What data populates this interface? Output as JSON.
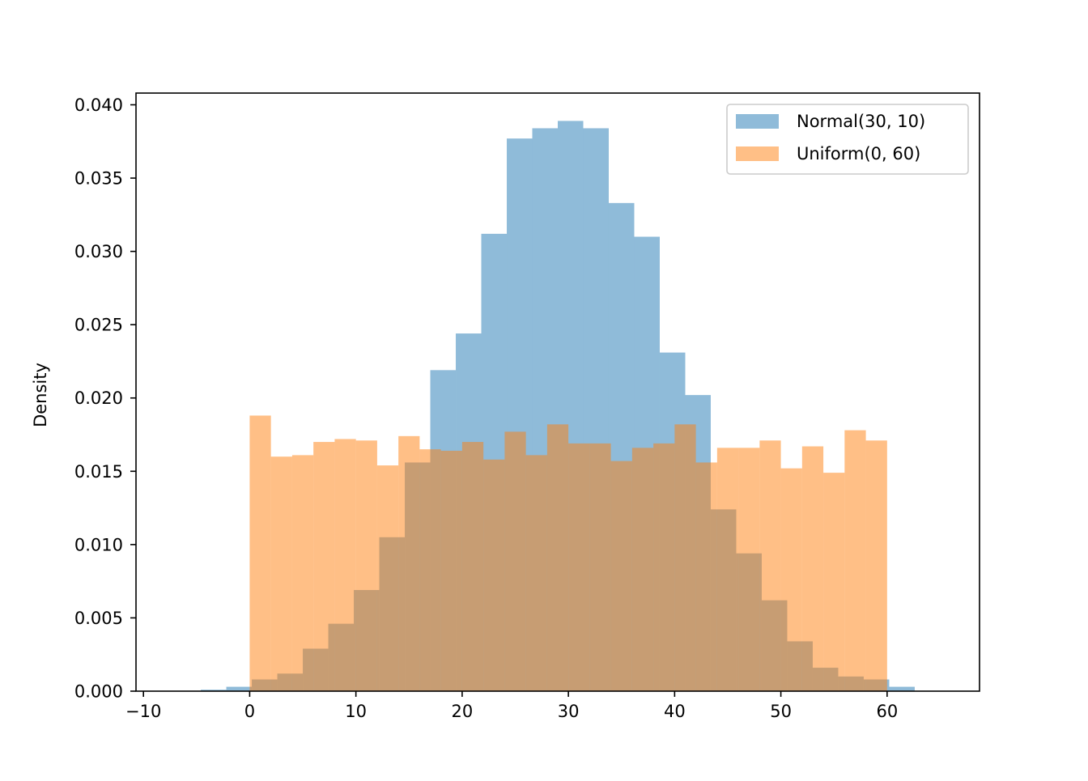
{
  "chart_data": {
    "type": "bar",
    "subtype": "overlaid-histogram",
    "title": "",
    "xlabel": "",
    "ylabel": "Density",
    "xlim": [
      -10.7,
      68.7
    ],
    "ylim": [
      0,
      0.0408
    ],
    "xticks": [
      -10,
      0,
      10,
      20,
      30,
      40,
      50,
      60
    ],
    "xtick_labels": [
      "−10",
      "0",
      "10",
      "20",
      "30",
      "40",
      "50",
      "60"
    ],
    "yticks": [
      0,
      0.005,
      0.01,
      0.015,
      0.02,
      0.025,
      0.03,
      0.035,
      0.04
    ],
    "ytick_labels": [
      "0.000",
      "0.005",
      "0.010",
      "0.015",
      "0.020",
      "0.025",
      "0.030",
      "0.035",
      "0.040"
    ],
    "grid": false,
    "legend_position": "top-right",
    "series": [
      {
        "name": "Normal(30, 10)",
        "color": "#1f77b4",
        "alpha": 0.5,
        "bin_edges": [
          -4.6,
          -2.2,
          0.2,
          2.6,
          5.0,
          7.4,
          9.8,
          12.2,
          14.6,
          17.0,
          19.4,
          21.8,
          24.2,
          26.6,
          29.0,
          31.4,
          33.8,
          36.2,
          38.6,
          41.0,
          43.4,
          45.8,
          48.2,
          50.6,
          53.0,
          55.4,
          57.8,
          60.2,
          62.6
        ],
        "values": [
          0.0001,
          0.0003,
          0.0008,
          0.0012,
          0.0029,
          0.0046,
          0.0069,
          0.0105,
          0.0156,
          0.0219,
          0.0244,
          0.0312,
          0.0377,
          0.0384,
          0.0389,
          0.0384,
          0.0333,
          0.031,
          0.0231,
          0.0202,
          0.0124,
          0.0094,
          0.0062,
          0.0034,
          0.0016,
          0.001,
          0.0008,
          0.0003
        ]
      },
      {
        "name": "Uniform(0, 60)",
        "color": "#ff7f0e",
        "alpha": 0.5,
        "bin_edges": [
          0.0,
          2.0,
          4.0,
          6.0,
          8.0,
          10.0,
          12.0,
          14.0,
          16.0,
          18.0,
          20.0,
          22.0,
          24.0,
          26.0,
          28.0,
          30.0,
          32.0,
          34.0,
          36.0,
          38.0,
          40.0,
          42.0,
          44.0,
          46.0,
          48.0,
          50.0,
          52.0,
          54.0,
          56.0,
          58.0,
          60.0
        ],
        "values": [
          0.0188,
          0.016,
          0.0161,
          0.017,
          0.0172,
          0.0171,
          0.0154,
          0.0174,
          0.0165,
          0.0164,
          0.017,
          0.0158,
          0.0177,
          0.0161,
          0.0182,
          0.0169,
          0.0169,
          0.0157,
          0.0166,
          0.0169,
          0.0182,
          0.0156,
          0.0166,
          0.0166,
          0.0171,
          0.0152,
          0.0167,
          0.0149,
          0.0178,
          0.0171
        ]
      }
    ]
  }
}
